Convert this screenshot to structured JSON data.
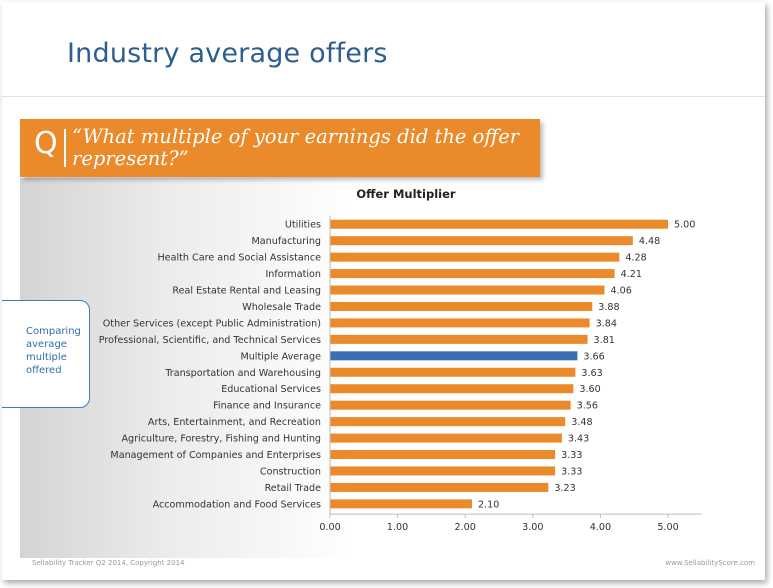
{
  "slide": {
    "title": "Industry average offers",
    "question_marker": "Q",
    "question": "“What multiple of your earnings did the offer represent?”",
    "callout": "Comparing average multiple offered",
    "footer_left": "Sellability Tracker Q2 2014, Copyright 2014",
    "footer_right": "www.SellabilityScore.com"
  },
  "colors": {
    "bar": "#ea8a2b",
    "highlight_bar": "#3a6fb0",
    "title": "#2e5e8f",
    "banner": "#ea8a2b"
  },
  "chart_data": {
    "type": "bar",
    "orientation": "horizontal",
    "title": "Offer Multiplier",
    "categories": [
      "Utilities",
      "Manufacturing",
      "Health Care and Social Assistance",
      "Information",
      "Real Estate Rental and Leasing",
      "Wholesale Trade",
      "Other Services (except Public Administration)",
      "Professional, Scientific, and Technical Services",
      "Multiple Average",
      "Transportation and Warehousing",
      "Educational Services",
      "Finance and Insurance",
      "Arts, Entertainment, and Recreation",
      "Agriculture, Forestry, Fishing and Hunting",
      "Management of Companies and Enterprises",
      "Construction",
      "Retail Trade",
      "Accommodation and Food Services"
    ],
    "values": [
      5.0,
      4.48,
      4.28,
      4.21,
      4.06,
      3.88,
      3.84,
      3.81,
      3.66,
      3.63,
      3.6,
      3.56,
      3.48,
      3.43,
      3.33,
      3.33,
      3.23,
      2.1
    ],
    "value_labels": [
      "5.00",
      "4.48",
      "4.28",
      "4.21",
      "4.06",
      "3.88",
      "3.84",
      "3.81",
      "3.66",
      "3.63",
      "3.60",
      "3.56",
      "3.48",
      "3.43",
      "3.33",
      "3.33",
      "3.23",
      "2.10"
    ],
    "highlight_category": "Multiple Average",
    "xlim": [
      0,
      5.5
    ],
    "xticks": [
      0,
      1,
      2,
      3,
      4,
      5
    ],
    "xtick_labels": [
      "0.00",
      "1.00",
      "2.00",
      "3.00",
      "4.00",
      "5.00"
    ],
    "grid": false,
    "legend": "none"
  }
}
